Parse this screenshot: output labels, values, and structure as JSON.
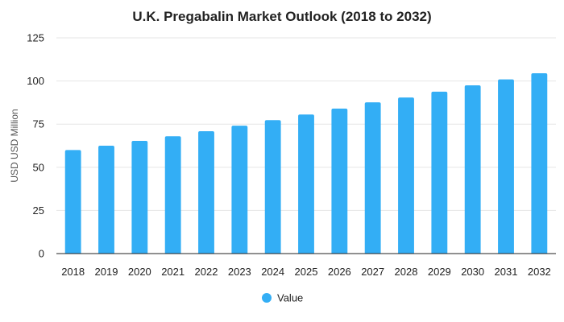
{
  "colors": {
    "bar": "#33aef5",
    "grid": "#e6e6e6",
    "axis": "#222222",
    "text": "#222222"
  },
  "chart_data": {
    "type": "bar",
    "title": "U.K. Pregabalin Market Outlook (2018 to 2032)",
    "xlabel": "",
    "ylabel": "USD USD Million",
    "ylim": [
      0,
      125
    ],
    "yticks": [
      0,
      25,
      50,
      75,
      100,
      125
    ],
    "grid": true,
    "legend_position": "bottom-center",
    "categories": [
      "2018",
      "2019",
      "2020",
      "2021",
      "2022",
      "2023",
      "2024",
      "2025",
      "2026",
      "2027",
      "2028",
      "2029",
      "2030",
      "2031",
      "2032"
    ],
    "series": [
      {
        "name": "Value",
        "values": [
          60,
          62.5,
          65.3,
          68,
          70.9,
          74.1,
          77.3,
          80.6,
          84,
          87.6,
          90.4,
          93.8,
          97.5,
          100.9,
          104.5
        ]
      }
    ]
  }
}
